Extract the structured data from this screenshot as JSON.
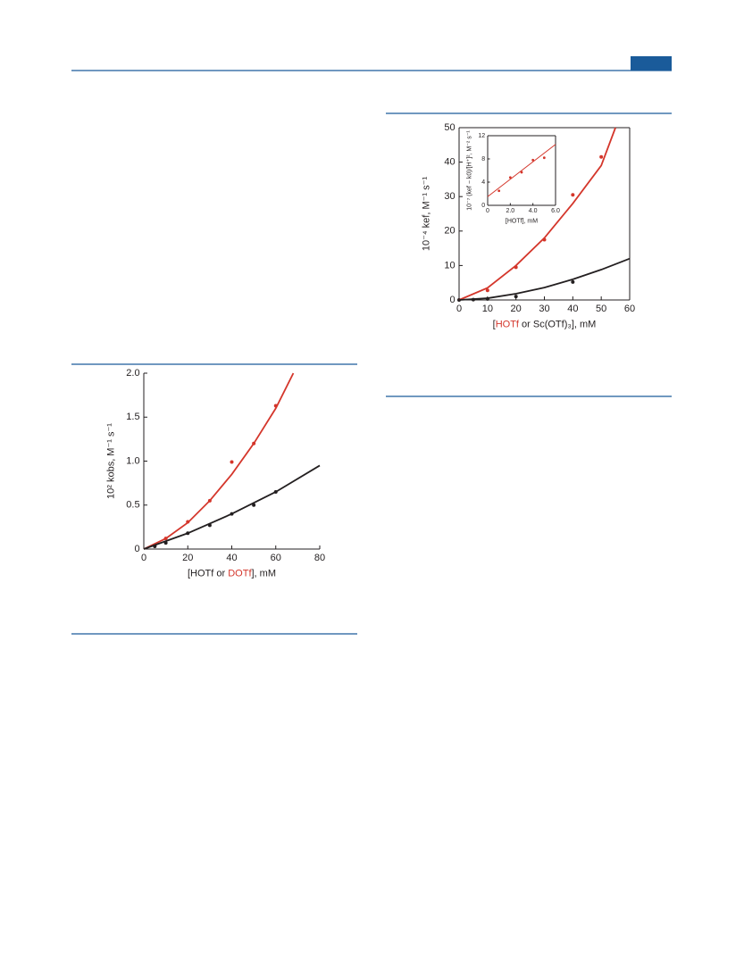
{
  "chart_data": [
    {
      "type": "scatter",
      "xlabel": [
        {
          "text": "[HOTf or ",
          "color": "#231f20"
        },
        {
          "text": "DOTf",
          "color": "#d4362b"
        },
        {
          "text": "], mM",
          "color": "#231f20"
        }
      ],
      "ylabel": "10² kobs, M⁻¹ s⁻¹",
      "xlim": [
        0,
        80
      ],
      "xticks": [
        0,
        20,
        40,
        60,
        80
      ],
      "ylim": [
        0,
        2
      ],
      "yticks": [
        0,
        0.5,
        {
          "value": 1,
          "label": "1.0"
        },
        1.5,
        {
          "value": 2,
          "label": "2.0"
        }
      ],
      "series": [
        {
          "mode": "markers",
          "color": "#d4362b",
          "x": [
            5,
            10,
            20,
            30,
            40,
            50,
            60
          ],
          "values": [
            0.04,
            0.12,
            0.31,
            0.55,
            0.99,
            1.2,
            1.63
          ]
        },
        {
          "mode": "markers",
          "color": "#231f20",
          "x": [
            5,
            10,
            20,
            30,
            40,
            50,
            60
          ],
          "values": [
            0.03,
            0.07,
            0.18,
            0.27,
            0.4,
            0.5,
            0.65
          ]
        },
        {
          "mode": "line",
          "color": "#d4362b",
          "x": [
            0,
            10,
            20,
            30,
            40,
            50,
            60,
            68
          ],
          "values": [
            0,
            0.12,
            0.3,
            0.55,
            0.85,
            1.2,
            1.6,
            2.0
          ]
        },
        {
          "mode": "line",
          "color": "#231f20",
          "x": [
            0,
            20,
            40,
            60,
            80
          ],
          "values": [
            0,
            0.18,
            0.4,
            0.65,
            0.95
          ]
        }
      ]
    },
    {
      "type": "scatter",
      "xlabel": [
        {
          "text": "[",
          "color": "#231f20"
        },
        {
          "text": "HOTf",
          "color": "#d4362b"
        },
        {
          "text": " or Sc(OTf)₃], mM",
          "color": "#231f20"
        }
      ],
      "ylabel": "10⁻⁴ kef, M⁻¹ s⁻¹",
      "xlim": [
        0,
        60
      ],
      "xticks": [
        0,
        10,
        20,
        30,
        40,
        50,
        60
      ],
      "ylim": [
        0,
        50
      ],
      "yticks": [
        0,
        10,
        20,
        30,
        40,
        50
      ],
      "series": [
        {
          "mode": "markers",
          "color": "#d4362b",
          "x": [
            10,
            20,
            30,
            40,
            50
          ],
          "values": [
            2.8,
            9.5,
            17.5,
            30.5,
            41.5
          ]
        },
        {
          "mode": "markers",
          "color": "#231f20",
          "x": [
            0,
            5,
            10,
            20,
            40
          ],
          "values": [
            0,
            0.1,
            0.3,
            1,
            5.2
          ]
        },
        {
          "mode": "line",
          "color": "#d4362b",
          "x": [
            0,
            10,
            20,
            30,
            40,
            50,
            55
          ],
          "values": [
            0,
            3.5,
            10,
            18,
            28,
            39,
            50
          ]
        },
        {
          "mode": "line",
          "color": "#231f20",
          "x": [
            0,
            10,
            20,
            30,
            40,
            50,
            60
          ],
          "values": [
            0,
            0.5,
            1.8,
            3.6,
            6,
            8.8,
            12
          ]
        }
      ]
    },
    {
      "type": "scatter",
      "xlabel": [
        {
          "text": "[HOTf], mM",
          "color": "#231f20"
        }
      ],
      "ylabel": "10⁻⁷ (kef − k0)/[H⁺]², M⁻² s⁻¹",
      "xlim": [
        0,
        6
      ],
      "xticks": [
        0,
        {
          "value": 2,
          "label": "2.0"
        },
        {
          "value": 4,
          "label": "4.0"
        },
        {
          "value": 6,
          "label": "6.0"
        }
      ],
      "ylim": [
        0,
        12
      ],
      "yticks": [
        0,
        4,
        8,
        12
      ],
      "series": [
        {
          "mode": "markers",
          "color": "#d4362b",
          "x": [
            1,
            2,
            3,
            4,
            5
          ],
          "values": [
            2.5,
            4.8,
            5.7,
            7.8,
            8.2
          ]
        },
        {
          "mode": "line",
          "color": "#d4362b",
          "x": [
            0,
            6
          ],
          "values": [
            1.5,
            10.5
          ]
        }
      ]
    }
  ]
}
